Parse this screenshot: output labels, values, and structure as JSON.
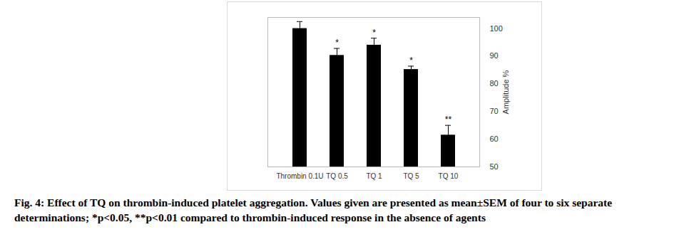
{
  "chart_data": {
    "type": "bar",
    "caption": "Fig. 4: Effect of TQ on thrombin-induced platelet aggregation. Values given are presented as mean±SEM of four to six separate determinations; *p<0.05, **p<0.01 compared to thrombin-induced response in the absence of agents",
    "y_label": "Amplitude %",
    "categories": [
      "Thrombin 0.1U",
      "TQ 0.5",
      "TQ 1",
      "TQ 5",
      "TQ 10"
    ],
    "values": [
      100,
      90.3,
      94,
      85.2,
      61.5
    ],
    "errors": [
      2.5,
      2.5,
      2.5,
      1.2,
      3.5
    ],
    "significance": [
      null,
      "*",
      "*",
      "*",
      "**"
    ],
    "color": "#000000",
    "ylim": [
      50,
      104
    ],
    "yticks": [
      50,
      60,
      70,
      80,
      90,
      100
    ],
    "grid": false
  }
}
